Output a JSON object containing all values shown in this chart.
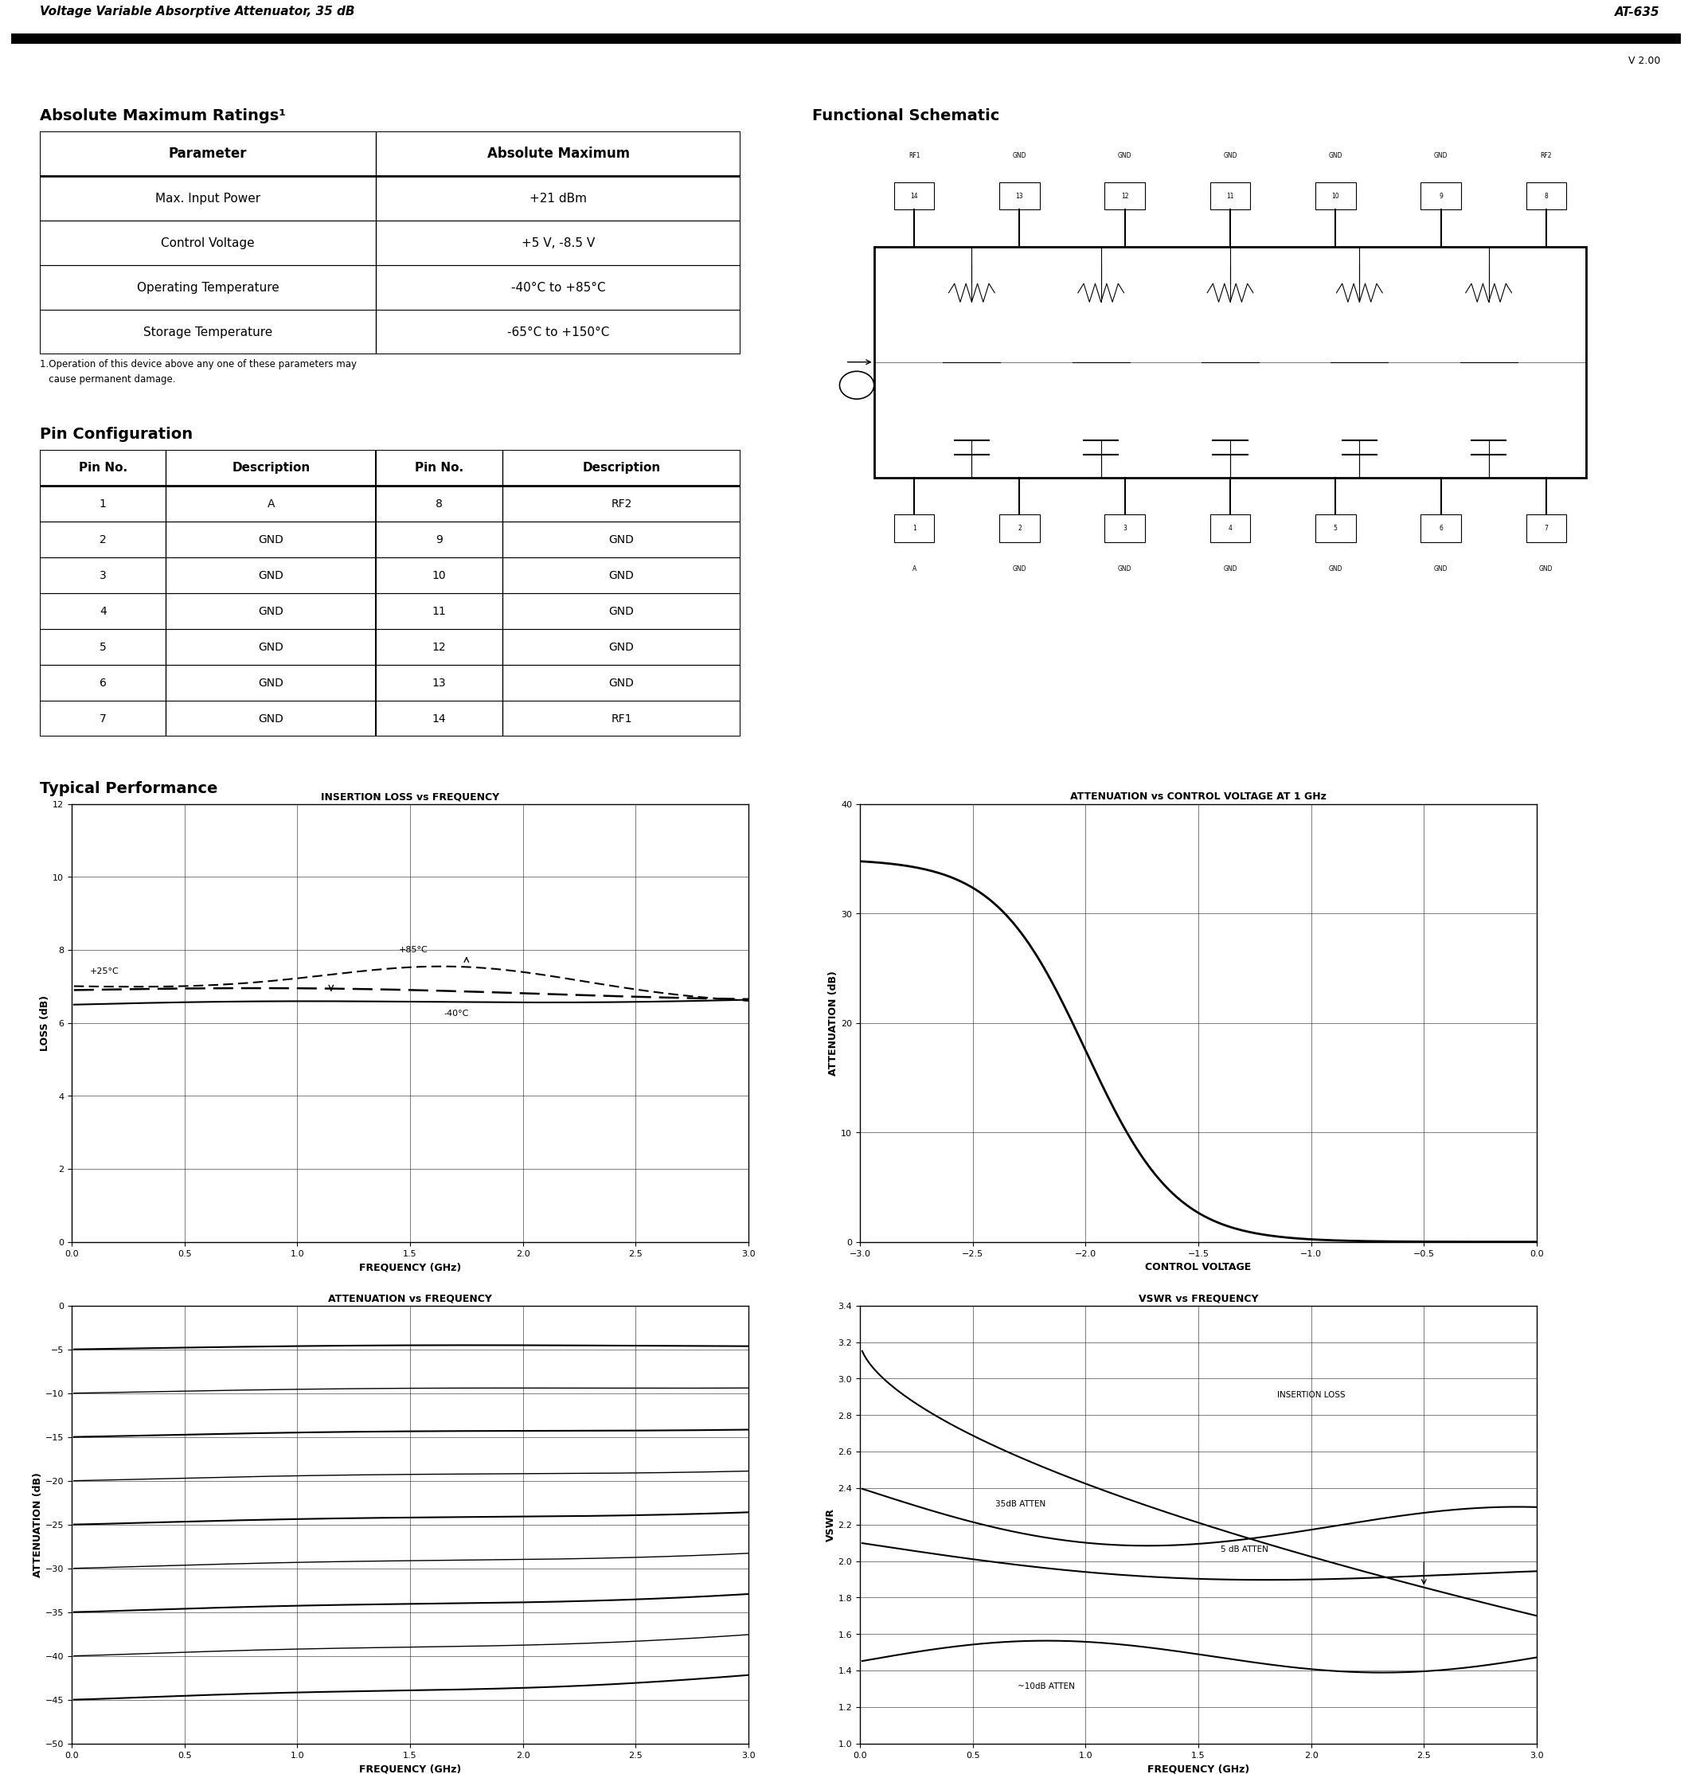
{
  "header_title": "Voltage Variable Absorptive Attenuator, 35 dB",
  "header_right": "AT-635",
  "version": "V 2.00",
  "abs_max_title": "Absolute Maximum Ratings¹",
  "abs_max_headers": [
    "Parameter",
    "Absolute Maximum"
  ],
  "abs_max_rows": [
    [
      "Max. Input Power",
      "+21 dBm"
    ],
    [
      "Control Voltage",
      "+5 V, -8.5 V"
    ],
    [
      "Operating Temperature",
      "-40°C to +85°C"
    ],
    [
      "Storage Temperature",
      "-65°C to +150°C"
    ]
  ],
  "abs_max_footnote1": "1.Operation of this device above any one of these parameters may",
  "abs_max_footnote2": "   cause permanent damage.",
  "pin_config_title": "Pin Configuration",
  "pin_headers": [
    "Pin No.",
    "Description",
    "Pin No.",
    "Description"
  ],
  "pin_rows": [
    [
      "1",
      "A",
      "8",
      "RF2"
    ],
    [
      "2",
      "GND",
      "9",
      "GND"
    ],
    [
      "3",
      "GND",
      "10",
      "GND"
    ],
    [
      "4",
      "GND",
      "11",
      "GND"
    ],
    [
      "5",
      "GND",
      "12",
      "GND"
    ],
    [
      "6",
      "GND",
      "13",
      "GND"
    ],
    [
      "7",
      "GND",
      "14",
      "RF1"
    ]
  ],
  "functional_title": "Functional Schematic",
  "typical_title": "Typical Performance",
  "chart1_title": "INSERTION LOSS vs FREQUENCY",
  "chart1_xlabel": "FREQUENCY (GHz)",
  "chart1_ylabel": "LOSS (dB)",
  "chart1_xlim": [
    0,
    3.0
  ],
  "chart1_ylim": [
    0,
    12
  ],
  "chart1_xticks": [
    0,
    0.5,
    1.0,
    1.5,
    2.0,
    2.5,
    3.0
  ],
  "chart1_yticks": [
    0,
    2,
    4,
    6,
    8,
    10,
    12
  ],
  "chart2_title": "ATTENUATION vs CONTROL VOLTAGE AT 1 GHz",
  "chart2_xlabel": "CONTROL VOLTAGE",
  "chart2_ylabel": "ATTENUATION (dB)",
  "chart2_xlim": [
    -3.0,
    0
  ],
  "chart2_ylim": [
    0,
    40
  ],
  "chart2_xticks": [
    -3.0,
    -2.5,
    -2.0,
    -1.5,
    -1.0,
    -0.5,
    0
  ],
  "chart2_yticks": [
    0,
    10,
    20,
    30,
    40
  ],
  "chart3_title": "ATTENUATION vs FREQUENCY",
  "chart3_xlabel": "FREQUENCY (GHz)",
  "chart3_ylabel": "ATTENUATION (dB)",
  "chart3_xlim": [
    0,
    3.0
  ],
  "chart3_ylim": [
    -50,
    0
  ],
  "chart3_xticks": [
    0,
    0.5,
    1.0,
    1.5,
    2.0,
    2.5,
    3.0
  ],
  "chart3_yticks": [
    0,
    -5,
    -10,
    -15,
    -20,
    -25,
    -30,
    -35,
    -40,
    -45,
    -50
  ],
  "chart4_title": "VSWR vs FREQUENCY",
  "chart4_xlabel": "FREQUENCY (GHz)",
  "chart4_ylabel": "VSWR",
  "chart4_xlim": [
    0,
    3.0
  ],
  "chart4_ylim": [
    1.0,
    3.4
  ],
  "chart4_xticks": [
    0,
    0.5,
    1.0,
    1.5,
    2.0,
    2.5,
    3.0
  ],
  "chart4_yticks": [
    1.0,
    1.2,
    1.4,
    1.6,
    1.8,
    2.0,
    2.2,
    2.4,
    2.6,
    2.8,
    3.0,
    3.2,
    3.4
  ]
}
